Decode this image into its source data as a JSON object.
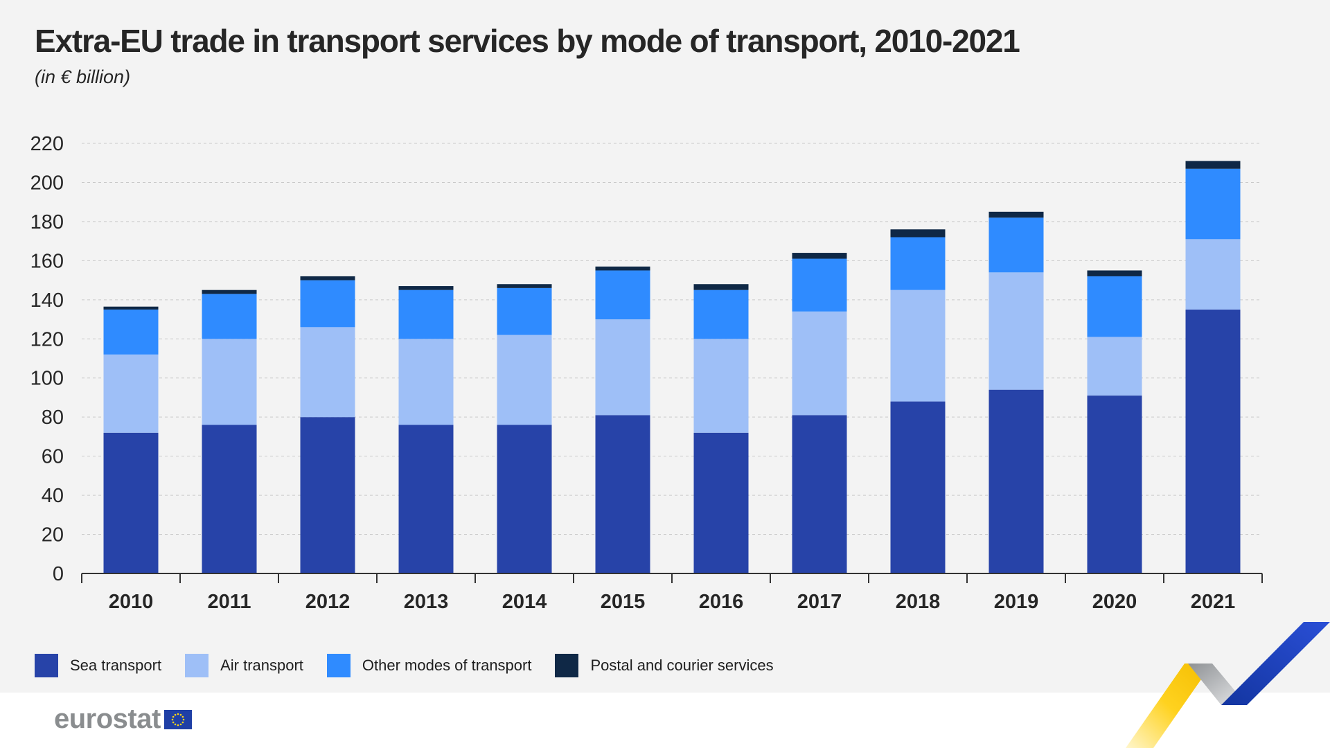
{
  "header": {
    "title": "Extra-EU trade in transport services by mode of transport, 2010-2021",
    "subtitle": "(in € billion)"
  },
  "legend": {
    "items": [
      {
        "label": "Sea transport",
        "color": "#2743a8"
      },
      {
        "label": "Air transport",
        "color": "#9ebff7"
      },
      {
        "label": "Other modes of transport",
        "color": "#2f8bff"
      },
      {
        "label": "Postal and courier services",
        "color": "#0f2846"
      }
    ]
  },
  "footer": {
    "logo_text": "eurostat"
  },
  "chart_data": {
    "type": "bar",
    "stacked": true,
    "title": "Extra-EU trade in transport services by mode of transport, 2010-2021",
    "subtitle": "(in € billion)",
    "xlabel": "",
    "ylabel": "",
    "ylim": [
      0,
      220
    ],
    "yticks": [
      0,
      20,
      40,
      60,
      80,
      100,
      120,
      140,
      160,
      180,
      200,
      220
    ],
    "grid": true,
    "legend_position": "bottom",
    "categories": [
      "2010",
      "2011",
      "2012",
      "2013",
      "2014",
      "2015",
      "2016",
      "2017",
      "2018",
      "2019",
      "2020",
      "2021"
    ],
    "series": [
      {
        "name": "Sea transport",
        "color": "#2743a8",
        "values": [
          72,
          76,
          80,
          76,
          76,
          81,
          72,
          81,
          88,
          94,
          91,
          135
        ]
      },
      {
        "name": "Air transport",
        "color": "#9ebff7",
        "values": [
          40,
          44,
          46,
          44,
          46,
          49,
          48,
          53,
          57,
          60,
          30,
          36
        ]
      },
      {
        "name": "Other modes of transport",
        "color": "#2f8bff",
        "values": [
          23,
          23,
          24,
          25,
          24,
          25,
          25,
          27,
          27,
          28,
          31,
          36
        ]
      },
      {
        "name": "Postal and courier services",
        "color": "#0f2846",
        "values": [
          1.5,
          2,
          2,
          2,
          2,
          2,
          3,
          3,
          4,
          3,
          3,
          4
        ]
      }
    ]
  }
}
